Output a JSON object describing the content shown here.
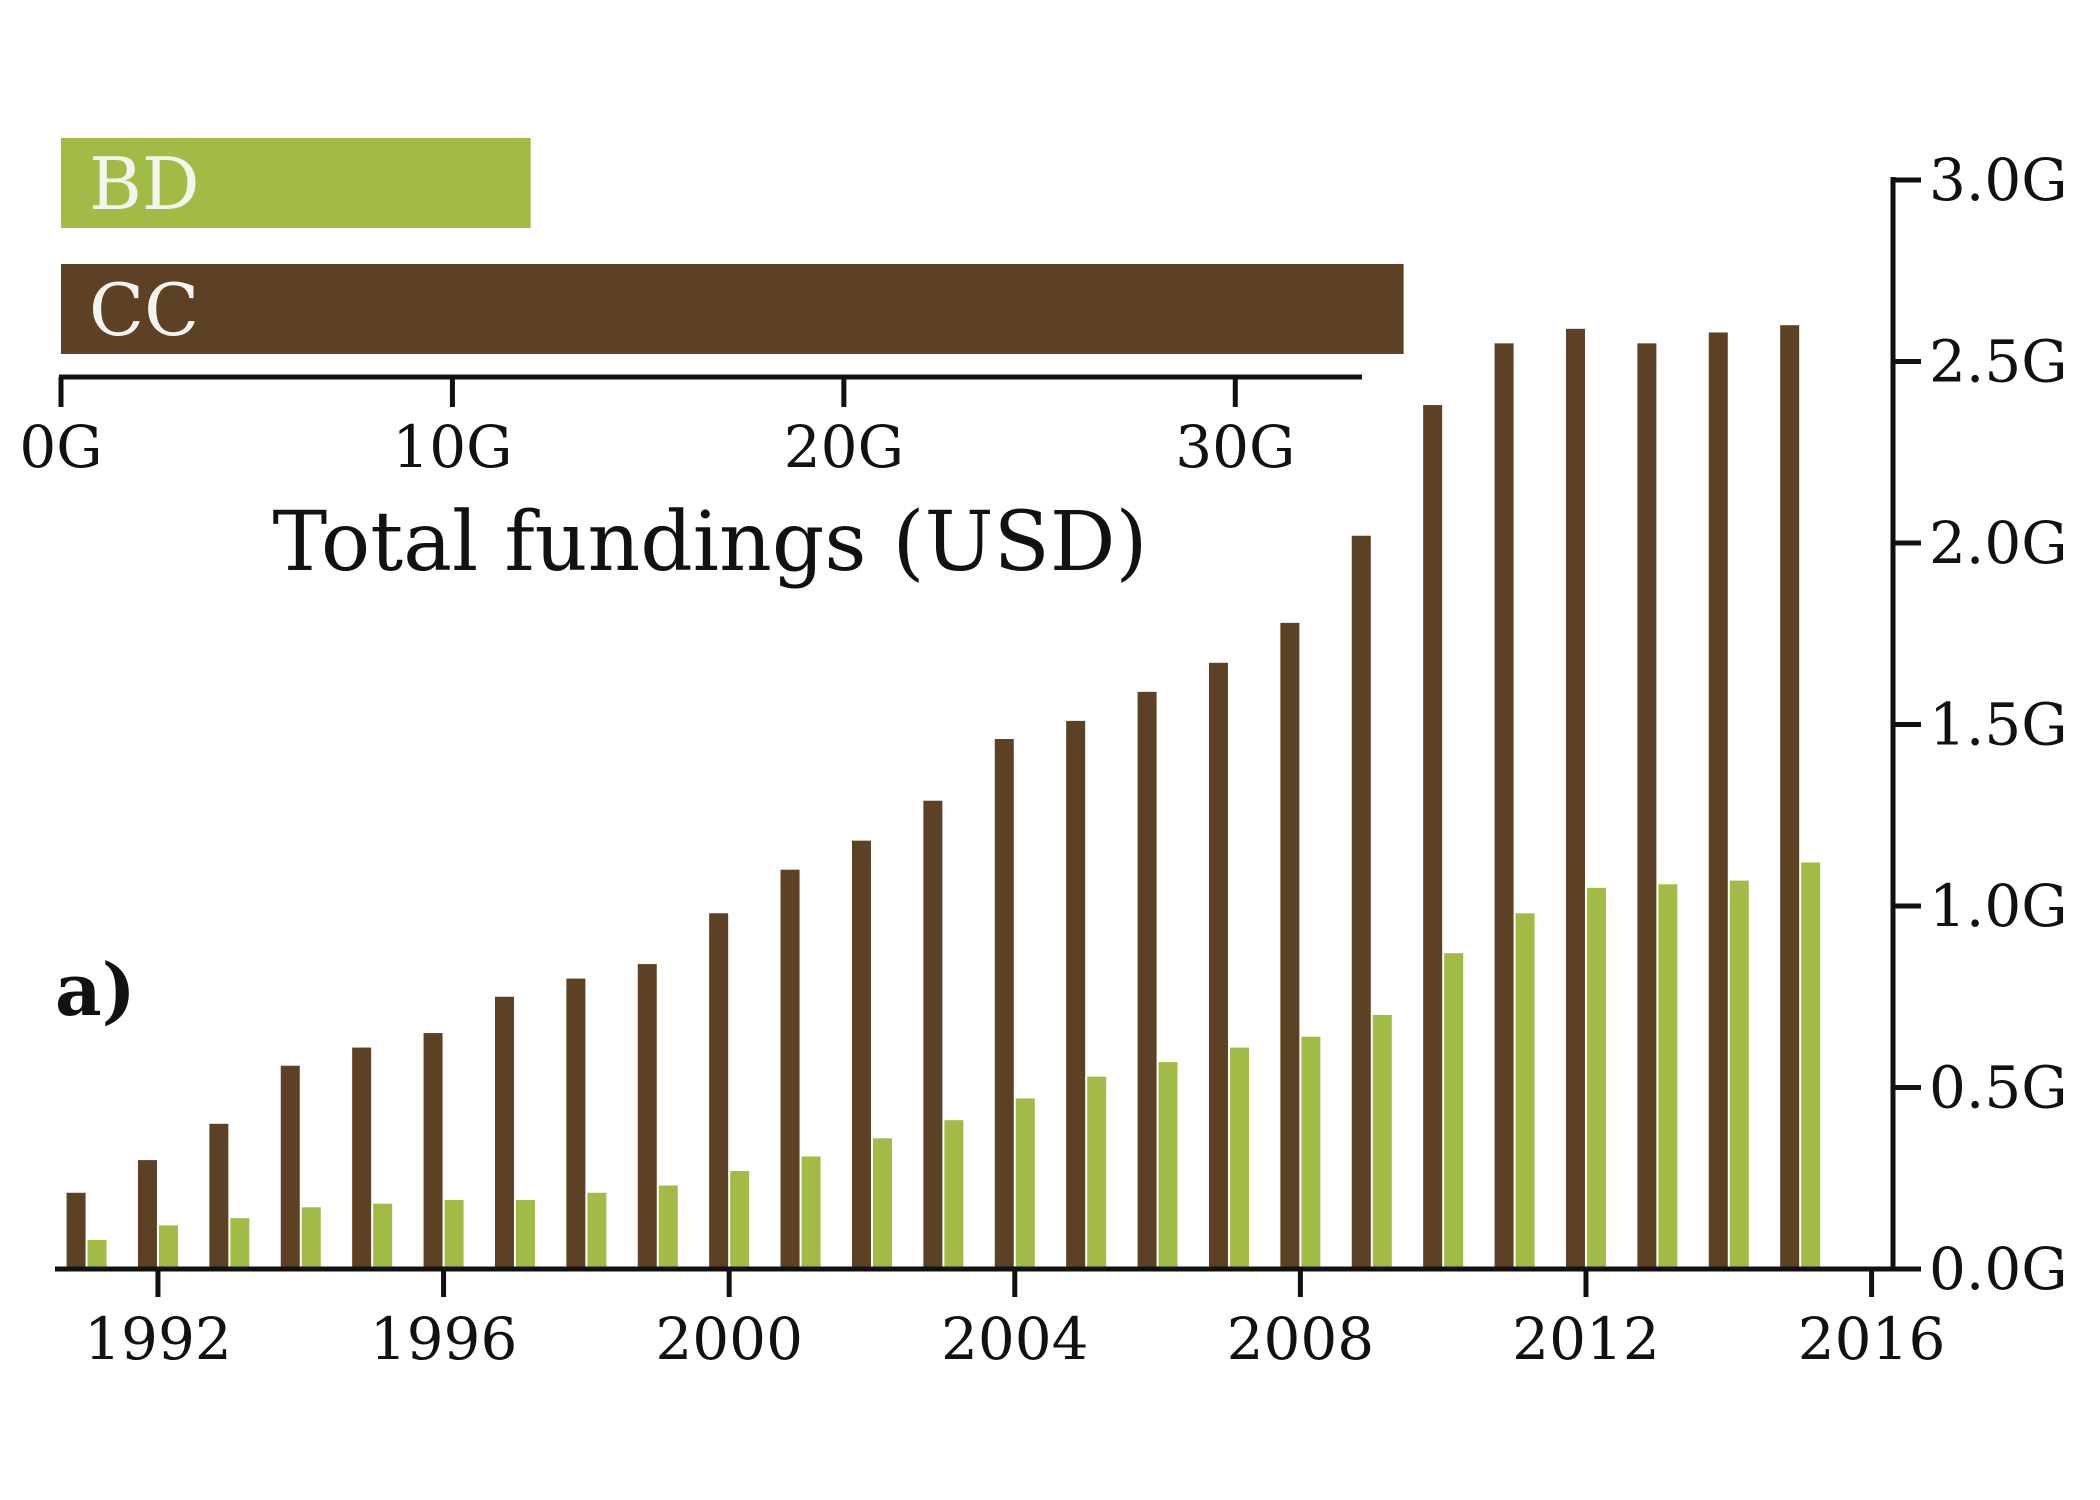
{
  "chart_data": [
    {
      "type": "bar",
      "panel_label": "a)",
      "x": [
        1991,
        1992,
        1993,
        1994,
        1995,
        1996,
        1997,
        1998,
        1999,
        2000,
        2001,
        2002,
        2003,
        2004,
        2005,
        2006,
        2007,
        2008,
        2009,
        2010,
        2011,
        2012,
        2013,
        2014,
        2015
      ],
      "x_ticks": [
        "1992",
        "1996",
        "2000",
        "2004",
        "2008",
        "2012",
        "2016"
      ],
      "y_ticks": [
        "0.0G",
        "0.5G",
        "1.0G",
        "1.5G",
        "2.0G",
        "2.5G",
        "3.0G"
      ],
      "xlim": [
        1990.6,
        2016.3
      ],
      "ylim": [
        0,
        3.0
      ],
      "y_axis_side": "right",
      "series": [
        {
          "key": "CC",
          "color": "#5c4124",
          "values": [
            0.21,
            0.3,
            0.4,
            0.56,
            0.61,
            0.65,
            0.75,
            0.8,
            0.84,
            0.98,
            1.1,
            1.18,
            1.29,
            1.46,
            1.51,
            1.59,
            1.67,
            1.78,
            2.02,
            2.38,
            2.55,
            2.59,
            2.55,
            2.58,
            2.6
          ]
        },
        {
          "key": "BD",
          "color": "#a2bb47",
          "values": [
            0.08,
            0.12,
            0.14,
            0.17,
            0.18,
            0.19,
            0.19,
            0.21,
            0.23,
            0.27,
            0.31,
            0.36,
            0.41,
            0.47,
            0.53,
            0.57,
            0.61,
            0.64,
            0.7,
            0.87,
            0.98,
            1.05,
            1.06,
            1.07,
            1.12
          ]
        }
      ]
    },
    {
      "type": "bar",
      "orientation": "horizontal",
      "xlabel": "Total fundings (USD)",
      "x_ticks": [
        "0G",
        "10G",
        "20G",
        "30G"
      ],
      "xlim": [
        0,
        35
      ],
      "categories": [
        "BD",
        "CC"
      ],
      "values": [
        12.0,
        34.3
      ],
      "colors": [
        "#a2bb47",
        "#5c4124"
      ]
    }
  ]
}
